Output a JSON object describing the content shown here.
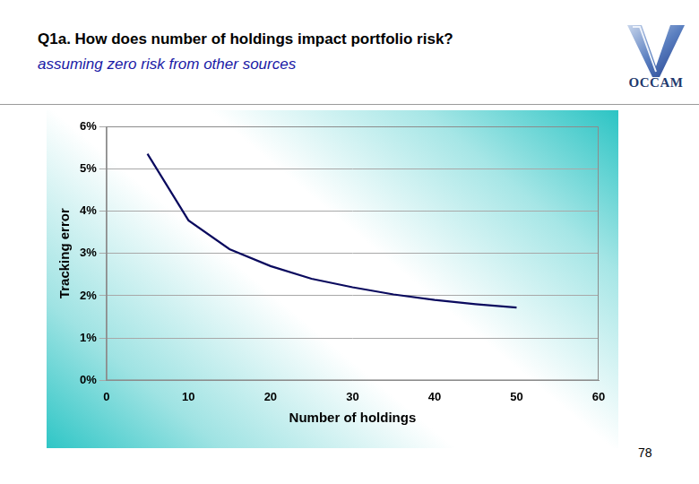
{
  "logo_text": "OCCAM",
  "page_number": 78,
  "chart_data": {
    "type": "line",
    "title": "Q1a. How does number of holdings impact portfolio risk?",
    "subtitle": "assuming zero risk from other sources",
    "x_label": "Number of holdings",
    "y_label": "Tracking error",
    "x": [
      5,
      10,
      15,
      20,
      25,
      30,
      35,
      40,
      45,
      50
    ],
    "values": [
      5.35,
      3.78,
      3.1,
      2.7,
      2.4,
      2.2,
      2.03,
      1.9,
      1.8,
      1.72
    ],
    "color": "#0a0a5e",
    "marker": "none",
    "xlim": [
      0,
      60
    ],
    "xticks": [
      0,
      10,
      20,
      30,
      40,
      50,
      60
    ],
    "ylim": [
      0,
      6
    ],
    "yticks": [
      {
        "value": 0,
        "label": "0%"
      },
      {
        "value": 1,
        "label": "1%"
      },
      {
        "value": 2,
        "label": "2%"
      },
      {
        "value": 3,
        "label": "3%"
      },
      {
        "value": 4,
        "label": "4%"
      },
      {
        "value": 5,
        "label": "5%"
      },
      {
        "value": 6,
        "label": "6%"
      }
    ],
    "grid": true
  }
}
